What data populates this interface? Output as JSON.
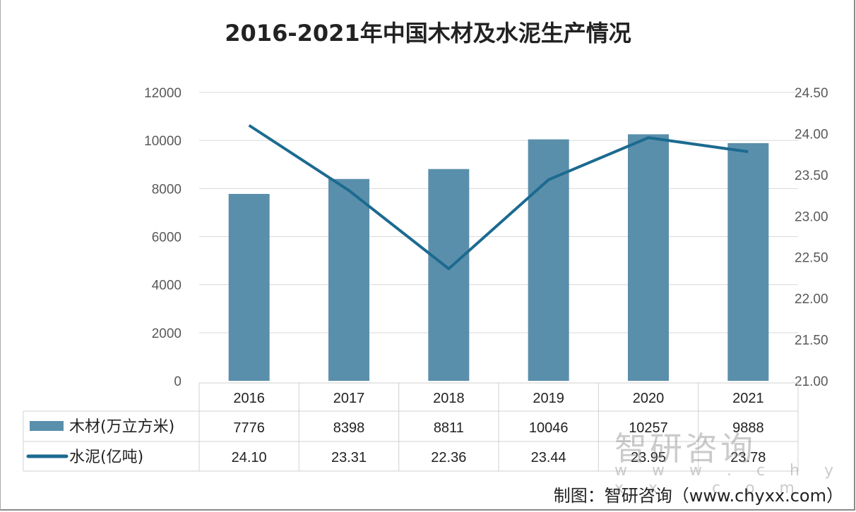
{
  "chart_data": {
    "type": "bar+line",
    "title": "2016-2021年中国木材及水泥生产情况",
    "categories": [
      "2016",
      "2017",
      "2018",
      "2019",
      "2020",
      "2021"
    ],
    "series": [
      {
        "name": "木材(万立方米)",
        "type": "bar",
        "axis": "left",
        "values": [
          7776,
          8398,
          8811,
          10046,
          10257,
          9888
        ],
        "labels": [
          "7776",
          "8398",
          "8811",
          "10046",
          "10257",
          "9888"
        ],
        "color": "#5a8fab"
      },
      {
        "name": "水泥(亿吨)",
        "type": "line",
        "axis": "right",
        "values": [
          24.1,
          23.31,
          22.36,
          23.44,
          23.95,
          23.78
        ],
        "labels": [
          "24.10",
          "23.31",
          "22.36",
          "23.44",
          "23.95",
          "23.78"
        ],
        "color": "#1c6a90"
      }
    ],
    "y_left": {
      "ylim": [
        0,
        12000
      ],
      "ticks": [
        "0",
        "2000",
        "4000",
        "6000",
        "8000",
        "10000",
        "12000"
      ]
    },
    "y_right": {
      "ylim": [
        21,
        24.5
      ],
      "ticks": [
        "21.00",
        "21.50",
        "22.00",
        "22.50",
        "23.00",
        "23.50",
        "24.00",
        "24.50"
      ]
    },
    "grid": true,
    "legend": "data-table"
  },
  "watermark": {
    "brand": "智研咨询",
    "url": "w w w . c h y x x . c o m"
  },
  "credit": "制图：智研咨询（www.chyxx.com）"
}
